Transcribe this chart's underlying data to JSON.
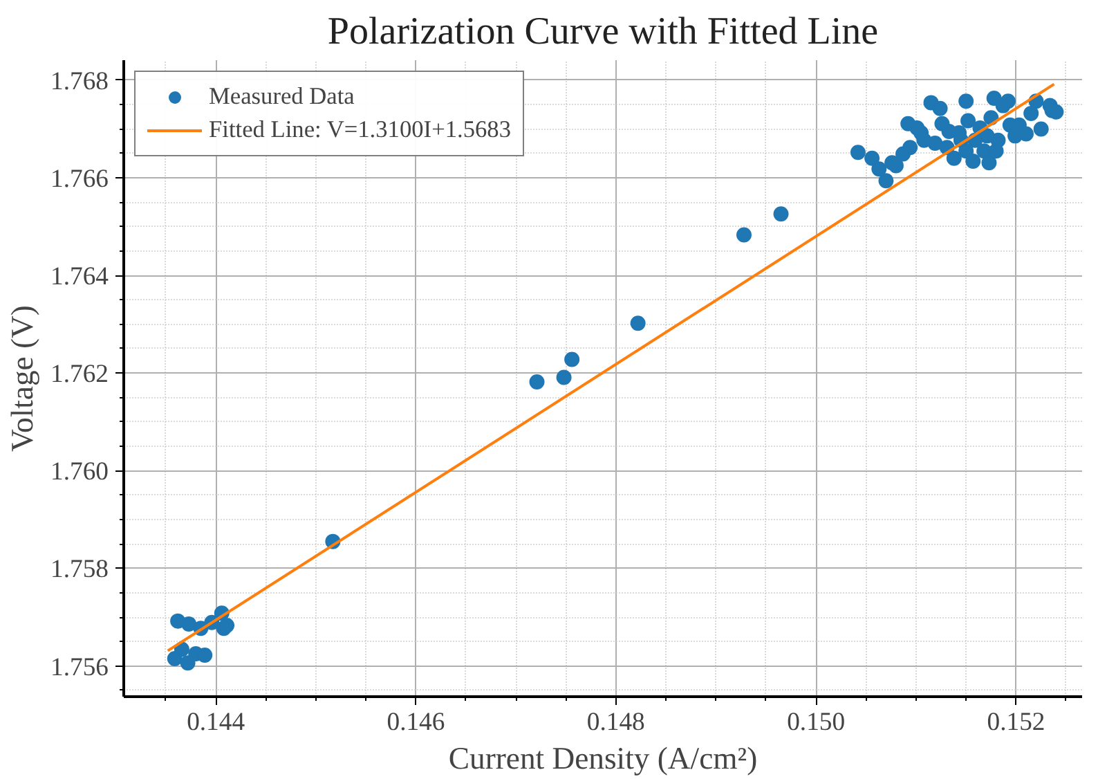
{
  "chart_data": {
    "type": "scatter",
    "title": "Polarization Curve with Fitted Line",
    "xlabel": "Current Density (A/cm²)",
    "ylabel": "Voltage (V)",
    "xlim": [
      0.14308,
      0.15266
    ],
    "ylim": [
      1.75537,
      1.76841
    ],
    "xticks": [
      {
        "value": 0.144,
        "label": "0.144"
      },
      {
        "value": 0.146,
        "label": "0.146"
      },
      {
        "value": 0.148,
        "label": "0.148"
      },
      {
        "value": 0.15,
        "label": "0.150"
      },
      {
        "value": 0.152,
        "label": "0.152"
      }
    ],
    "yticks": [
      {
        "value": 1.756,
        "label": "1.756"
      },
      {
        "value": 1.758,
        "label": "1.758"
      },
      {
        "value": 1.76,
        "label": "1.760"
      },
      {
        "value": 1.762,
        "label": "1.762"
      },
      {
        "value": 1.764,
        "label": "1.764"
      },
      {
        "value": 1.766,
        "label": "1.766"
      },
      {
        "value": 1.768,
        "label": "1.768"
      }
    ],
    "grid": true,
    "legend": "top left",
    "marker": "circle",
    "series": [
      {
        "name": "Measured Data",
        "color": "#1f77b4",
        "x": [
          0.14359,
          0.14366,
          0.14372,
          0.1438,
          0.14389,
          0.14362,
          0.14373,
          0.14385,
          0.14396,
          0.14406,
          0.14408,
          0.14411,
          0.14517,
          0.14721,
          0.14748,
          0.14756,
          0.14822,
          0.14928,
          0.14965,
          0.15042,
          0.15056,
          0.15063,
          0.1507,
          0.1508,
          0.15087,
          0.15092,
          0.15105,
          0.15115,
          0.15124,
          0.15119,
          0.15133,
          0.15138,
          0.15145,
          0.1515,
          0.15152,
          0.15157,
          0.15159,
          0.15164,
          0.15168,
          0.15173,
          0.15175,
          0.15178,
          0.15182,
          0.15187,
          0.15192,
          0.15194,
          0.15199,
          0.15203,
          0.15215,
          0.1522,
          0.15234,
          0.15236,
          0.1515,
          0.15143,
          0.15131,
          0.15108,
          0.15101,
          0.15094,
          0.15076,
          0.15126,
          0.15171,
          0.1518,
          0.15225,
          0.1521,
          0.1524
        ],
        "values": [
          1.75615,
          1.75634,
          1.75606,
          1.75625,
          1.75622,
          1.75692,
          1.75686,
          1.75677,
          1.75689,
          1.75708,
          1.75677,
          1.75683,
          1.75855,
          1.76182,
          1.76191,
          1.76228,
          1.76302,
          1.76483,
          1.76526,
          1.76652,
          1.7664,
          1.76618,
          1.76594,
          1.76625,
          1.76649,
          1.76711,
          1.76692,
          1.76754,
          1.76742,
          1.76671,
          1.76695,
          1.7664,
          1.76677,
          1.76757,
          1.76717,
          1.76634,
          1.76677,
          1.76702,
          1.76655,
          1.76631,
          1.76723,
          1.76763,
          1.76677,
          1.76748,
          1.76757,
          1.76708,
          1.76686,
          1.76708,
          1.76732,
          1.76757,
          1.76748,
          1.76738,
          1.76655,
          1.76692,
          1.76662,
          1.76677,
          1.76702,
          1.76662,
          1.76631,
          1.76711,
          1.76686,
          1.76655,
          1.767,
          1.7669,
          1.76735
        ]
      },
      {
        "name": "Fitted Line: V=1.3100I+1.5683",
        "type": "line",
        "color": "#ff7f0e",
        "marker": "none",
        "x": [
          0.14352,
          0.15238
        ],
        "values": [
          1.75631,
          1.76792
        ]
      }
    ]
  }
}
